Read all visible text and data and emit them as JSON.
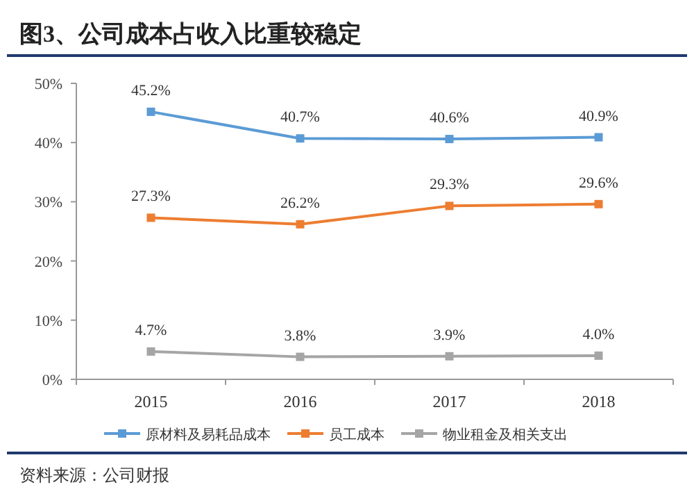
{
  "chart_data": {
    "type": "line",
    "title": "图3、公司成本占收入比重较稳定",
    "categories": [
      "2015",
      "2016",
      "2017",
      "2018"
    ],
    "series": [
      {
        "name": "原材料及易耗品成本",
        "color": "#5b9bd5",
        "values": [
          45.2,
          40.7,
          40.6,
          40.9
        ],
        "value_labels": [
          "45.2%",
          "40.7%",
          "40.6%",
          "40.9%"
        ]
      },
      {
        "name": "员工成本",
        "color": "#ed7d31",
        "values": [
          27.3,
          26.2,
          29.3,
          29.6
        ],
        "value_labels": [
          "27.3%",
          "26.2%",
          "29.3%",
          "29.6%"
        ]
      },
      {
        "name": "物业租金及相关支出",
        "color": "#a5a5a5",
        "values": [
          4.7,
          3.8,
          3.9,
          4.0
        ],
        "value_labels": [
          "4.7%",
          "3.8%",
          "3.9%",
          "4.0%"
        ]
      }
    ],
    "ylim": [
      0,
      50
    ],
    "yticks": [
      {
        "value": 0,
        "label": "0%"
      },
      {
        "value": 10,
        "label": "10%"
      },
      {
        "value": 20,
        "label": "20%"
      },
      {
        "value": 30,
        "label": "30%"
      },
      {
        "value": 40,
        "label": "40%"
      },
      {
        "value": 50,
        "label": "50%"
      }
    ],
    "grid": false,
    "legend": "bottom",
    "marker": "square",
    "line_style": "solid",
    "annotations": [
      "资料来源：公司财报"
    ]
  }
}
